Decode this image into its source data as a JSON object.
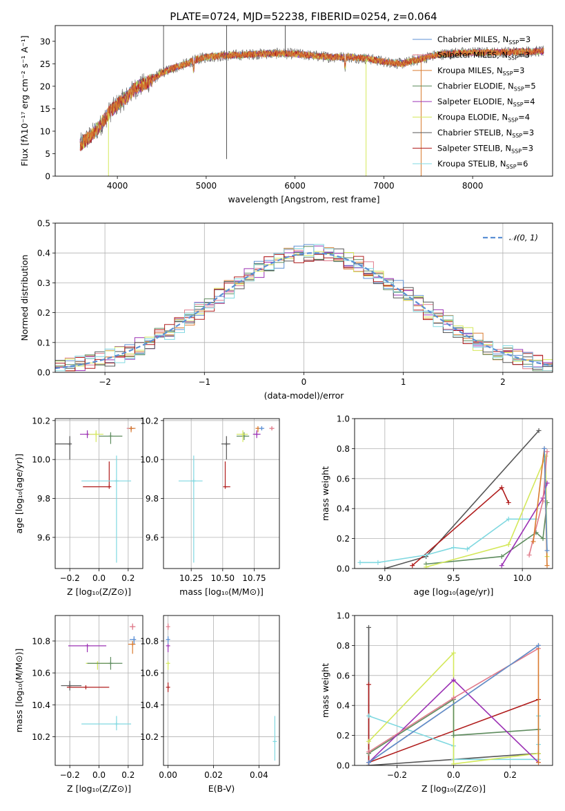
{
  "figure": {
    "title": "PLATE=0724, MJD=52238, FIBERID=0254, z=0.064"
  },
  "models": [
    {
      "label": "Chabrier MILES, N",
      "sub": "SSP",
      "tail": "=3",
      "color": "#5b8fd4"
    },
    {
      "label": "Salpeter MILES, N",
      "sub": "SSP",
      "tail": "=3",
      "color": "#e07a8a"
    },
    {
      "label": "Kroupa MILES, N",
      "sub": "SSP",
      "tail": "=3",
      "color": "#d97a2e"
    },
    {
      "label": "Chabrier ELODIE, N",
      "sub": "SSP",
      "tail": "=5",
      "color": "#5e8c5e"
    },
    {
      "label": "Salpeter ELODIE, N",
      "sub": "SSP",
      "tail": "=4",
      "color": "#9b30b4"
    },
    {
      "label": "Kroupa ELODIE, N",
      "sub": "SSP",
      "tail": "=4",
      "color": "#d4e85a"
    },
    {
      "label": "Chabrier STELIB, N",
      "sub": "SSP",
      "tail": "=3",
      "color": "#555555"
    },
    {
      "label": "Salpeter STELIB, N",
      "sub": "SSP",
      "tail": "=3",
      "color": "#b01c1c"
    },
    {
      "label": "Kroupa STELIB, N",
      "sub": "SSP",
      "tail": "=6",
      "color": "#7fd8e0"
    }
  ],
  "chart_data": [
    {
      "id": "spectrum",
      "type": "line",
      "xlabel": "wavelength [Angstrom, rest frame]",
      "ylabel": "Flux [fλ10⁻¹⁷ erg cm⁻² s⁻¹ A⁻¹]",
      "xlim": [
        3300,
        8900
      ],
      "ylim": [
        0,
        33.5
      ],
      "xticks": [
        4000,
        5000,
        6000,
        7000,
        8000
      ],
      "yticks": [
        0,
        5,
        10,
        15,
        20,
        25,
        30
      ],
      "continuum": {
        "x": [
          3580,
          3700,
          3800,
          3900,
          4000,
          4100,
          4200,
          4300,
          4400,
          4500,
          4600,
          4700,
          4800,
          4900,
          5000,
          5200,
          5400,
          5600,
          5800,
          6000,
          6200,
          6400,
          6600,
          6800,
          7000,
          7200,
          7400,
          7600,
          7800,
          8000,
          8200,
          8400,
          8600,
          8800
        ],
        "y": [
          7,
          9,
          11,
          14,
          16,
          17.5,
          19.5,
          20.5,
          21.5,
          23,
          23.8,
          24.5,
          25.2,
          26,
          26.5,
          26.8,
          27,
          27.2,
          27.3,
          27.2,
          26.8,
          26.5,
          26.5,
          26.2,
          25.5,
          25,
          26,
          27,
          27.4,
          27.5,
          27.5,
          27.6,
          27.7,
          27.8
        ]
      },
      "spikes": [
        {
          "x": 4520,
          "y": 33.5
        },
        {
          "x": 5230,
          "y": 33.5
        },
        {
          "x": 5890,
          "y": 33.5
        },
        {
          "x": 5230,
          "y": 3.8
        },
        {
          "x": 3900,
          "y": 0
        },
        {
          "x": 6800,
          "y": 0
        },
        {
          "x": 7420,
          "y": 0
        }
      ]
    },
    {
      "id": "residuals",
      "type": "bar",
      "xlabel": "(data-model)/error",
      "ylabel": "Normed distribution",
      "xlim": [
        -2.5,
        2.5
      ],
      "ylim": [
        0,
        0.5
      ],
      "xticks": [
        -2,
        -1,
        0,
        1,
        2
      ],
      "yticks": [
        0.0,
        0.1,
        0.2,
        0.3,
        0.4,
        0.5
      ],
      "bin_width": 0.1,
      "reference": {
        "name": "𝒩(0, 1)",
        "color": "#5b8fd4",
        "center": 0.1,
        "sigma": 1.0,
        "peak": 0.4
      }
    },
    {
      "id": "age-vs-Z",
      "type": "scatter",
      "xlabel": "Z [log₁₀(Z/Z⊙)]",
      "ylabel": "age  [log₁₀(age/yr)]",
      "xlim": [
        -0.3,
        0.3
      ],
      "ylim": [
        9.44,
        10.21
      ],
      "xticks": [
        -0.2,
        0.0,
        0.2
      ],
      "yticks": [
        9.6,
        9.8,
        10.0,
        10.2
      ],
      "points": [
        {
          "model": 6,
          "x": -0.2,
          "y": 10.08,
          "xerr": [
            0.1,
            0.0
          ],
          "yerr": [
            0.08,
            0.04
          ]
        },
        {
          "model": 4,
          "x": -0.08,
          "y": 10.13,
          "xerr": [
            0.05,
            0.05
          ],
          "yerr": [
            0.02,
            0.02
          ]
        },
        {
          "model": 5,
          "x": -0.02,
          "y": 10.13,
          "xerr": [
            0.05,
            0.05
          ],
          "yerr": [
            0.04,
            0.02
          ]
        },
        {
          "model": 3,
          "x": 0.08,
          "y": 10.12,
          "xerr": [
            0.08,
            0.08
          ],
          "yerr": [
            0.04,
            0.02
          ]
        },
        {
          "model": 0,
          "x": 0.22,
          "y": 10.16,
          "xerr": [
            0.02,
            0.02
          ],
          "yerr": [
            0.01,
            0.01
          ]
        },
        {
          "model": 1,
          "x": 0.22,
          "y": 10.16,
          "xerr": [
            0.03,
            0.02
          ],
          "yerr": [
            0.01,
            0.01
          ]
        },
        {
          "model": 2,
          "x": 0.22,
          "y": 10.16,
          "xerr": [
            0.01,
            0.03
          ],
          "yerr": [
            0.02,
            0.01
          ]
        },
        {
          "model": 7,
          "x": 0.07,
          "y": 9.86,
          "xerr": [
            0.18,
            0.0
          ],
          "yerr": [
            0.0,
            0.13
          ]
        },
        {
          "model": 8,
          "x": 0.12,
          "y": 9.89,
          "xerr": [
            0.24,
            0.1
          ],
          "yerr": [
            0.42,
            0.13
          ]
        }
      ]
    },
    {
      "id": "age-vs-mass",
      "type": "scatter",
      "xlabel": "mass [log₁₀(M/M⊙)]",
      "ylabel": "",
      "xlim": [
        10.03,
        10.95
      ],
      "ylim": [
        9.44,
        10.21
      ],
      "xticks": [
        10.25,
        10.5,
        10.75
      ],
      "yticks": [
        9.6,
        9.8,
        10.0,
        10.2
      ],
      "points": [
        {
          "model": 8,
          "x": 10.27,
          "y": 9.89,
          "xerr": [
            0.12,
            0.07
          ],
          "yerr": [
            0.42,
            0.13
          ]
        },
        {
          "model": 7,
          "x": 10.52,
          "y": 9.86,
          "xerr": [
            0.0,
            0.04
          ],
          "yerr": [
            0.0,
            0.13
          ]
        },
        {
          "model": 6,
          "x": 10.53,
          "y": 10.08,
          "xerr": [
            0.04,
            0.03
          ],
          "yerr": [
            0.08,
            0.04
          ]
        },
        {
          "model": 3,
          "x": 10.67,
          "y": 10.12,
          "xerr": [
            0.06,
            0.04
          ],
          "yerr": [
            0.02,
            0.02
          ]
        },
        {
          "model": 5,
          "x": 10.66,
          "y": 10.13,
          "xerr": [
            0.05,
            0.04
          ],
          "yerr": [
            0.04,
            0.02
          ]
        },
        {
          "model": 4,
          "x": 10.77,
          "y": 10.13,
          "xerr": [
            0.03,
            0.03
          ],
          "yerr": [
            0.02,
            0.02
          ]
        },
        {
          "model": 2,
          "x": 10.78,
          "y": 10.16,
          "xerr": [
            0.02,
            0.02
          ],
          "yerr": [
            0.02,
            0.01
          ]
        },
        {
          "model": 0,
          "x": 10.81,
          "y": 10.16,
          "xerr": [
            0.02,
            0.02
          ],
          "yerr": [
            0.01,
            0.01
          ]
        },
        {
          "model": 1,
          "x": 10.89,
          "y": 10.16,
          "xerr": [
            0.02,
            0.02
          ],
          "yerr": [
            0.01,
            0.01
          ]
        }
      ]
    },
    {
      "id": "weight-vs-age",
      "type": "line",
      "xlabel": "age  [log₁₀(age/yr)]",
      "ylabel": "mass weight",
      "xlim": [
        8.78,
        10.22
      ],
      "ylim": [
        0.0,
        1.0
      ],
      "xticks": [
        9.0,
        9.5,
        10.0
      ],
      "yticks": [
        0.0,
        0.2,
        0.4,
        0.6,
        0.8,
        1.0
      ],
      "series": [
        {
          "model": 6,
          "x": [
            9.0,
            9.3,
            10.12
          ],
          "y": [
            0.0,
            0.08,
            0.92
          ]
        },
        {
          "model": 7,
          "x": [
            9.2,
            9.85,
            9.9
          ],
          "y": [
            0.02,
            0.54,
            0.44
          ]
        },
        {
          "model": 8,
          "x": [
            8.82,
            8.95,
            9.3,
            9.5,
            9.6,
            9.9,
            10.1
          ],
          "y": [
            0.04,
            0.04,
            0.09,
            0.14,
            0.13,
            0.33,
            0.33
          ]
        },
        {
          "model": 3,
          "x": [
            9.3,
            9.85,
            10.1,
            10.15,
            10.18
          ],
          "y": [
            0.03,
            0.08,
            0.24,
            0.2,
            0.44
          ]
        },
        {
          "model": 5,
          "x": [
            9.3,
            9.9,
            10.17,
            10.18
          ],
          "y": [
            0.01,
            0.16,
            0.75,
            0.08
          ]
        },
        {
          "model": 4,
          "x": [
            9.85,
            10.15,
            10.18
          ],
          "y": [
            0.02,
            0.47,
            0.57
          ]
        },
        {
          "model": 1,
          "x": [
            10.05,
            10.15,
            10.18
          ],
          "y": [
            0.09,
            0.45,
            0.78
          ]
        },
        {
          "model": 2,
          "x": [
            10.08,
            10.16,
            10.18
          ],
          "y": [
            0.18,
            0.8,
            0.02
          ]
        },
        {
          "model": 0,
          "x": [
            10.16,
            10.18
          ],
          "y": [
            0.8,
            0.12
          ]
        }
      ]
    },
    {
      "id": "mass-vs-Z",
      "type": "scatter",
      "xlabel": "Z [log₁₀(Z/Z⊙)]",
      "ylabel": "mass [log₁₀(M/M⊙)]",
      "xlim": [
        -0.3,
        0.3
      ],
      "ylim": [
        10.02,
        10.96
      ],
      "xticks": [
        -0.2,
        0.0,
        0.2
      ],
      "yticks": [
        10.2,
        10.4,
        10.6,
        10.8
      ],
      "points": [
        {
          "model": 6,
          "x": -0.2,
          "y": 10.52,
          "xerr": [
            0.06,
            0.08
          ],
          "yerr": [
            0.03,
            0.03
          ]
        },
        {
          "model": 7,
          "x": -0.09,
          "y": 10.51,
          "xerr": [
            0.13,
            0.16
          ],
          "yerr": [
            0.0,
            0.0
          ]
        },
        {
          "model": 4,
          "x": -0.08,
          "y": 10.77,
          "xerr": [
            0.13,
            0.13
          ],
          "yerr": [
            0.04,
            0.0
          ]
        },
        {
          "model": 5,
          "x": -0.01,
          "y": 10.66,
          "xerr": [
            0.08,
            0.08
          ],
          "yerr": [
            0.04,
            0.01
          ]
        },
        {
          "model": 3,
          "x": 0.08,
          "y": 10.66,
          "xerr": [
            0.16,
            0.08
          ],
          "yerr": [
            0.04,
            0.04
          ]
        },
        {
          "model": 8,
          "x": 0.12,
          "y": 10.28,
          "xerr": [
            0.24,
            0.1
          ],
          "yerr": [
            0.04,
            0.05
          ]
        },
        {
          "model": 0,
          "x": 0.24,
          "y": 10.81,
          "xerr": [
            0.03,
            0.01
          ],
          "yerr": [
            0.03,
            0.02
          ]
        },
        {
          "model": 1,
          "x": 0.23,
          "y": 10.89,
          "xerr": [
            0.02,
            0.02
          ],
          "yerr": [
            0.02,
            0.02
          ]
        },
        {
          "model": 2,
          "x": 0.23,
          "y": 10.78,
          "xerr": [
            0.03,
            0.02
          ],
          "yerr": [
            0.06,
            0.02
          ]
        }
      ]
    },
    {
      "id": "mass-vs-ebv",
      "type": "scatter",
      "xlabel": "E(B-V)",
      "ylabel": "",
      "xlim": [
        -0.002,
        0.049
      ],
      "ylim": [
        10.02,
        10.96
      ],
      "xticks": [
        0.0,
        0.02,
        0.04
      ],
      "yticks": [
        10.2,
        10.4,
        10.6,
        10.8
      ],
      "points": [
        {
          "model": 1,
          "x": 0.0,
          "y": 10.89,
          "xerr": [
            0,
            0
          ],
          "yerr": [
            0.02,
            0.02
          ]
        },
        {
          "model": 0,
          "x": 0.0,
          "y": 10.81,
          "xerr": [
            0,
            0
          ],
          "yerr": [
            0.03,
            0.02
          ]
        },
        {
          "model": 4,
          "x": 0.0,
          "y": 10.77,
          "xerr": [
            0,
            0
          ],
          "yerr": [
            0.04,
            0.0
          ]
        },
        {
          "model": 5,
          "x": 0.0,
          "y": 10.66,
          "xerr": [
            0,
            0
          ],
          "yerr": [
            0.04,
            0.01
          ]
        },
        {
          "model": 7,
          "x": 0.0,
          "y": 10.51,
          "xerr": [
            0,
            0
          ],
          "yerr": [
            0.03,
            0.03
          ]
        },
        {
          "model": 8,
          "x": 0.047,
          "y": 10.17,
          "xerr": [
            0,
            0
          ],
          "yerr": [
            0.12,
            0.16
          ]
        }
      ]
    },
    {
      "id": "weight-vs-Z",
      "type": "line",
      "xlabel": "Z [log₁₀(Z/Z⊙)]",
      "ylabel": "mass weight",
      "xlim": [
        -0.35,
        0.35
      ],
      "ylim": [
        0.0,
        1.0
      ],
      "xticks": [
        -0.2,
        0.0,
        0.2
      ],
      "yticks": [
        0.0,
        0.2,
        0.4,
        0.6,
        0.8,
        1.0
      ],
      "series": [
        {
          "model": 6,
          "x": [
            -0.3,
            -0.3,
            -0.3,
            0.3,
            0.3
          ],
          "y": [
            0.92,
            0.0,
            0.0,
            0.08,
            0.08
          ]
        },
        {
          "model": 7,
          "x": [
            -0.3,
            -0.3,
            0.3
          ],
          "y": [
            0.54,
            0.02,
            0.44
          ]
        },
        {
          "model": 8,
          "x": [
            -0.3,
            0.0,
            0.0,
            0.3,
            0.3,
            0.3
          ],
          "y": [
            0.33,
            0.13,
            0.04,
            0.04,
            0.33,
            0.14
          ]
        },
        {
          "model": 5,
          "x": [
            -0.3,
            0.0,
            0.0,
            0.3
          ],
          "y": [
            0.16,
            0.75,
            0.01,
            0.08
          ]
        },
        {
          "model": 3,
          "x": [
            -0.3,
            0.0,
            0.0,
            0.3
          ],
          "y": [
            0.08,
            0.44,
            0.2,
            0.24
          ]
        },
        {
          "model": 4,
          "x": [
            -0.3,
            0.0,
            0.3
          ],
          "y": [
            0.02,
            0.57,
            0.02
          ]
        },
        {
          "model": 1,
          "x": [
            -0.3,
            0.0,
            0.3
          ],
          "y": [
            0.09,
            0.45,
            0.78
          ]
        },
        {
          "model": 2,
          "x": [
            -0.3,
            0.3,
            0.3
          ],
          "y": [
            0.02,
            0.8,
            0.02
          ]
        },
        {
          "model": 0,
          "x": [
            -0.3,
            0.3
          ],
          "y": [
            0.02,
            0.8
          ]
        }
      ]
    }
  ]
}
